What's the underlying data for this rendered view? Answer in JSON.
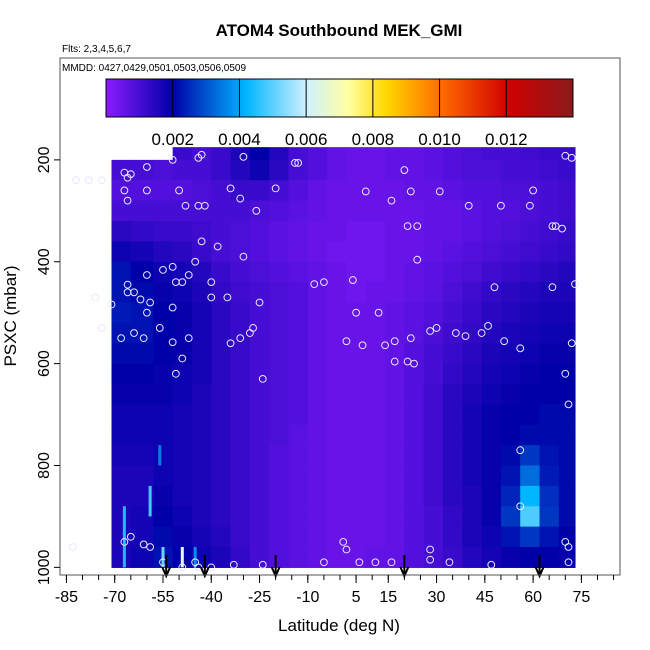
{
  "chart_data": {
    "type": "heatmap",
    "title": "ATOM4 Southbound MEK_GMI",
    "subtitle_flights": "Flts: 2,3,4,5,6,7",
    "subtitle_dates": "MMDD: 0427,0429,0501,0503,0506,0509",
    "xlabel": "Latitude (deg N)",
    "ylabel": "PSXC (mbar)",
    "xlim": [
      -87,
      87
    ],
    "ylim": [
      1015,
      0
    ],
    "x_ticks": [
      -85,
      -70,
      -55,
      -40,
      -25,
      -10,
      5,
      15,
      30,
      45,
      60,
      75
    ],
    "x_tick_labels": [
      "-85",
      "-70",
      "-55",
      "-40",
      "-25",
      "-10",
      "5",
      "15",
      "30",
      "45",
      "60",
      "75"
    ],
    "x_minor_ticks": [
      -85,
      -80,
      -75,
      -70,
      -65,
      -60,
      -55,
      -50,
      -45,
      -40,
      -35,
      -30,
      -25,
      -20,
      -15,
      -10,
      -5,
      0,
      5,
      10,
      15,
      20,
      25,
      30,
      35,
      40,
      45,
      50,
      55,
      60,
      65,
      70,
      75,
      80,
      85
    ],
    "y_ticks": [
      200,
      400,
      600,
      800,
      1000
    ],
    "y_tick_labels": [
      "200",
      "400",
      "600",
      "800",
      "1000"
    ],
    "colorbar": {
      "range": [
        0,
        0.014
      ],
      "ticks": [
        0.002,
        0.004,
        0.006,
        0.008,
        0.01,
        0.012
      ],
      "tick_labels": [
        "0.002",
        "0.004",
        "0.006",
        "0.008",
        "0.010",
        "0.012"
      ],
      "colors": [
        "#8b1bff",
        "#0000a8",
        "#00b6ff",
        "#ffffff",
        "#ffd700",
        "#ff6a00",
        "#d00000",
        "#8b1a1a"
      ]
    },
    "field": {
      "lat_edges": [
        -71,
        -65,
        -58,
        -52,
        -46,
        -40,
        -34,
        -28,
        -22,
        -16,
        -10,
        -4,
        2,
        8,
        14,
        20,
        26,
        32,
        38,
        44,
        50,
        56,
        62,
        68,
        73
      ],
      "p_edges": [
        175,
        200,
        240,
        280,
        320,
        360,
        400,
        440,
        480,
        520,
        560,
        600,
        640,
        680,
        720,
        760,
        800,
        840,
        880,
        920,
        960,
        1000
      ],
      "values": [
        [
          null,
          null,
          null,
          0.0012,
          0.001,
          0.0012,
          0.0016,
          0.002,
          0.0015,
          0.001,
          0.0008,
          0.0006,
          0.0005,
          0.0005,
          0.0006,
          0.0006,
          0.0007,
          0.0008,
          0.0009,
          0.001,
          0.001,
          0.0011,
          0.0012,
          0.0012
        ],
        [
          0.001,
          0.001,
          0.0009,
          0.001,
          0.001,
          0.0012,
          0.0015,
          0.0018,
          0.0014,
          0.001,
          0.0008,
          0.0006,
          0.0005,
          0.0005,
          0.0006,
          0.0006,
          0.0007,
          0.0008,
          0.0009,
          0.0009,
          0.001,
          0.001,
          0.0011,
          0.0012
        ],
        [
          0.0008,
          0.0008,
          0.0008,
          0.0008,
          0.0009,
          0.001,
          0.0012,
          0.0012,
          0.001,
          0.0008,
          0.0006,
          0.0005,
          0.0005,
          0.0005,
          0.0005,
          0.0006,
          0.0006,
          0.0007,
          0.0008,
          0.0008,
          0.0009,
          0.0009,
          0.001,
          0.0011
        ],
        [
          0.001,
          0.001,
          0.001,
          0.001,
          0.001,
          0.001,
          0.001,
          0.0009,
          0.0008,
          0.0007,
          0.0006,
          0.0005,
          0.0005,
          0.0005,
          0.0005,
          0.0005,
          0.0006,
          0.0006,
          0.0007,
          0.0008,
          0.0008,
          0.0009,
          0.001,
          0.0011
        ],
        [
          0.0014,
          0.0013,
          0.0012,
          0.0012,
          0.0011,
          0.001,
          0.0009,
          0.0008,
          0.0007,
          0.0006,
          0.0005,
          0.0005,
          0.0004,
          0.0004,
          0.0005,
          0.0005,
          0.0006,
          0.0006,
          0.0007,
          0.0008,
          0.0009,
          0.001,
          0.0011,
          0.0012
        ],
        [
          0.0018,
          0.0017,
          0.0015,
          0.0014,
          0.0012,
          0.001,
          0.0009,
          0.0008,
          0.0007,
          0.0006,
          0.0005,
          0.0004,
          0.0004,
          0.0004,
          0.0005,
          0.0005,
          0.0006,
          0.0007,
          0.0008,
          0.0009,
          0.001,
          0.0011,
          0.0012,
          0.0013
        ],
        [
          0.0022,
          0.002,
          0.0018,
          0.0017,
          0.0015,
          0.0012,
          0.001,
          0.0009,
          0.0008,
          0.0007,
          0.0006,
          0.0005,
          0.0004,
          0.0004,
          0.0005,
          0.0006,
          0.0007,
          0.0008,
          0.0009,
          0.0011,
          0.0012,
          0.0013,
          0.0014,
          0.0015
        ],
        [
          0.0022,
          0.0021,
          0.0019,
          0.0018,
          0.0016,
          0.0013,
          0.0011,
          0.001,
          0.0009,
          0.0008,
          0.0006,
          0.0005,
          0.0004,
          0.0005,
          0.0005,
          0.0006,
          0.0007,
          0.0009,
          0.0011,
          0.0013,
          0.0014,
          0.0015,
          0.0016,
          0.0016
        ],
        [
          0.0023,
          0.0022,
          0.002,
          0.0019,
          0.0017,
          0.0014,
          0.0012,
          0.001,
          0.0009,
          0.0008,
          0.0006,
          0.0005,
          0.0005,
          0.0005,
          0.0006,
          0.0007,
          0.0008,
          0.001,
          0.0012,
          0.0014,
          0.0015,
          0.0016,
          0.0017,
          0.0017
        ],
        [
          0.0022,
          0.0022,
          0.002,
          0.0019,
          0.0017,
          0.0014,
          0.0012,
          0.001,
          0.0009,
          0.0008,
          0.0006,
          0.0005,
          0.0005,
          0.0005,
          0.0006,
          0.0007,
          0.0009,
          0.0011,
          0.0013,
          0.0015,
          0.0016,
          0.0017,
          0.0018,
          0.0018
        ],
        [
          0.0021,
          0.0021,
          0.002,
          0.0019,
          0.0017,
          0.0014,
          0.0012,
          0.001,
          0.0009,
          0.0008,
          0.0006,
          0.0005,
          0.0005,
          0.0005,
          0.0006,
          0.0008,
          0.001,
          0.0012,
          0.0014,
          0.0016,
          0.0017,
          0.0018,
          0.0019,
          0.0019
        ],
        [
          0.002,
          0.002,
          0.0019,
          0.0018,
          0.0017,
          0.0014,
          0.0012,
          0.001,
          0.0009,
          0.0008,
          0.0006,
          0.0005,
          0.0005,
          0.0005,
          0.0006,
          0.0008,
          0.001,
          0.0013,
          0.0015,
          0.0017,
          0.0018,
          0.0019,
          0.002,
          0.002
        ],
        [
          0.0019,
          0.0019,
          0.0019,
          0.0018,
          0.0016,
          0.0014,
          0.0012,
          0.001,
          0.0009,
          0.0008,
          0.0006,
          0.0005,
          0.0005,
          0.0005,
          0.0006,
          0.0008,
          0.0011,
          0.0014,
          0.0016,
          0.0018,
          0.0019,
          0.002,
          0.002,
          0.002
        ],
        [
          0.0018,
          0.0018,
          0.0018,
          0.0017,
          0.0016,
          0.0014,
          0.0012,
          0.001,
          0.0009,
          0.0008,
          0.0006,
          0.0005,
          0.0005,
          0.0005,
          0.0006,
          0.0008,
          0.0011,
          0.0014,
          0.0017,
          0.0019,
          0.002,
          0.002,
          0.0021,
          0.0021
        ],
        [
          0.0018,
          0.0018,
          0.0018,
          0.0017,
          0.0016,
          0.0014,
          0.0012,
          0.001,
          0.0009,
          0.0007,
          0.0006,
          0.0005,
          0.0005,
          0.0005,
          0.0006,
          0.0008,
          0.0011,
          0.0014,
          0.0017,
          0.0019,
          0.002,
          0.0021,
          0.0021,
          0.0021
        ],
        [
          0.0017,
          0.0017,
          0.0018,
          0.0017,
          0.0016,
          0.0014,
          0.0012,
          0.001,
          0.0008,
          0.0007,
          0.0006,
          0.0005,
          0.0005,
          0.0005,
          0.0006,
          0.0008,
          0.0011,
          0.0014,
          0.0017,
          0.0019,
          0.0021,
          0.0026,
          0.0022,
          0.0021
        ],
        [
          0.0016,
          0.0016,
          0.0018,
          0.0017,
          0.0016,
          0.0014,
          0.0012,
          0.001,
          0.0008,
          0.0007,
          0.0006,
          0.0005,
          0.0005,
          0.0005,
          0.0006,
          0.0008,
          0.0011,
          0.0014,
          0.0017,
          0.0019,
          0.0022,
          0.0032,
          0.0023,
          0.0021
        ],
        [
          0.0016,
          0.0016,
          0.0019,
          0.0017,
          0.0016,
          0.0014,
          0.0012,
          0.001,
          0.0008,
          0.0007,
          0.0006,
          0.0005,
          0.0005,
          0.0005,
          0.0006,
          0.0008,
          0.0011,
          0.0014,
          0.0016,
          0.0019,
          0.0024,
          0.004,
          0.0025,
          0.0021
        ],
        [
          0.0016,
          0.0017,
          0.002,
          0.0018,
          0.0016,
          0.0014,
          0.0012,
          0.001,
          0.0008,
          0.0007,
          0.0006,
          0.0005,
          0.0005,
          0.0005,
          0.0006,
          0.0008,
          0.001,
          0.0013,
          0.0016,
          0.0019,
          0.0026,
          0.0046,
          0.0026,
          0.0021
        ],
        [
          0.0016,
          0.0017,
          0.0021,
          0.0019,
          0.0017,
          0.0015,
          0.0012,
          0.001,
          0.0008,
          0.0007,
          0.0006,
          0.0005,
          0.0005,
          0.0005,
          0.0006,
          0.0008,
          0.001,
          0.0013,
          0.0016,
          0.0018,
          0.0022,
          0.0026,
          0.0022,
          0.002
        ],
        [
          0.0016,
          0.0018,
          0.0022,
          0.002,
          0.0018,
          0.0016,
          0.0013,
          0.001,
          0.0008,
          0.0007,
          0.0006,
          0.0005,
          0.0005,
          0.0006,
          0.0006,
          0.0008,
          0.001,
          0.0012,
          0.0015,
          0.0017,
          0.0019,
          0.002,
          0.002,
          0.0019
        ]
      ],
      "streaks": [
        {
          "lat": -67,
          "p": [
            880,
            1000
          ],
          "value": 0.0042
        },
        {
          "lat": -59,
          "p": [
            840,
            900
          ],
          "value": 0.0045
        },
        {
          "lat": -56,
          "p": [
            760,
            800
          ],
          "value": 0.0034
        },
        {
          "lat": -55,
          "p": [
            960,
            1000
          ],
          "value": 0.0048
        },
        {
          "lat": -49,
          "p": [
            960,
            1000
          ],
          "value": 0.0058
        },
        {
          "lat": -45,
          "p": [
            960,
            1000
          ],
          "value": 0.0036
        }
      ]
    },
    "observations": [
      {
        "lat": -82,
        "p": 240
      },
      {
        "lat": -78,
        "p": 240
      },
      {
        "lat": -74,
        "p": 240
      },
      {
        "lat": -67,
        "p": 225
      },
      {
        "lat": -66,
        "p": 235
      },
      {
        "lat": -65,
        "p": 228
      },
      {
        "lat": -60,
        "p": 214
      },
      {
        "lat": -52,
        "p": 200
      },
      {
        "lat": -44,
        "p": 196
      },
      {
        "lat": -43,
        "p": 190
      },
      {
        "lat": -30,
        "p": 194
      },
      {
        "lat": -14,
        "p": 206
      },
      {
        "lat": -13,
        "p": 206
      },
      {
        "lat": 20,
        "p": 220
      },
      {
        "lat": 70,
        "p": 192
      },
      {
        "lat": 72,
        "p": 196
      },
      {
        "lat": -67,
        "p": 260
      },
      {
        "lat": -66,
        "p": 280
      },
      {
        "lat": -60,
        "p": 260
      },
      {
        "lat": -50,
        "p": 260
      },
      {
        "lat": -44,
        "p": 290
      },
      {
        "lat": -42,
        "p": 290
      },
      {
        "lat": -34,
        "p": 256
      },
      {
        "lat": -20,
        "p": 256
      },
      {
        "lat": -48,
        "p": 290
      },
      {
        "lat": -31,
        "p": 276
      },
      {
        "lat": -26,
        "p": 300
      },
      {
        "lat": 8,
        "p": 262
      },
      {
        "lat": 16,
        "p": 280
      },
      {
        "lat": 21,
        "p": 330
      },
      {
        "lat": 24,
        "p": 330
      },
      {
        "lat": 22,
        "p": 262
      },
      {
        "lat": 31,
        "p": 262
      },
      {
        "lat": 40,
        "p": 290
      },
      {
        "lat": 50,
        "p": 290
      },
      {
        "lat": 59,
        "p": 290
      },
      {
        "lat": 66,
        "p": 330
      },
      {
        "lat": 67,
        "p": 330
      },
      {
        "lat": 69,
        "p": 335
      },
      {
        "lat": 60,
        "p": 260
      },
      {
        "lat": -43,
        "p": 360
      },
      {
        "lat": -38,
        "p": 370
      },
      {
        "lat": -30,
        "p": 390
      },
      {
        "lat": -52,
        "p": 410
      },
      {
        "lat": -45,
        "p": 400
      },
      {
        "lat": -64,
        "p": 460
      },
      {
        "lat": -60,
        "p": 426
      },
      {
        "lat": -55,
        "p": 416
      },
      {
        "lat": -47,
        "p": 426
      },
      {
        "lat": -40,
        "p": 440
      },
      {
        "lat": 24,
        "p": 396
      },
      {
        "lat": -66,
        "p": 460
      },
      {
        "lat": -62,
        "p": 474
      },
      {
        "lat": -59,
        "p": 480
      },
      {
        "lat": -60,
        "p": 500
      },
      {
        "lat": -52,
        "p": 490
      },
      {
        "lat": -66,
        "p": 445
      },
      {
        "lat": -51,
        "p": 440
      },
      {
        "lat": -76,
        "p": 470
      },
      {
        "lat": -71,
        "p": 484
      },
      {
        "lat": -49,
        "p": 440
      },
      {
        "lat": -40,
        "p": 470
      },
      {
        "lat": -35,
        "p": 470
      },
      {
        "lat": -25,
        "p": 480
      },
      {
        "lat": -8,
        "p": 444
      },
      {
        "lat": -5,
        "p": 440
      },
      {
        "lat": 4,
        "p": 436
      },
      {
        "lat": 5,
        "p": 500
      },
      {
        "lat": 12,
        "p": 500
      },
      {
        "lat": 48,
        "p": 450
      },
      {
        "lat": 66,
        "p": 450
      },
      {
        "lat": 73,
        "p": 444
      },
      {
        "lat": -74,
        "p": 530
      },
      {
        "lat": -68,
        "p": 550
      },
      {
        "lat": -64,
        "p": 540
      },
      {
        "lat": -61,
        "p": 550
      },
      {
        "lat": -56,
        "p": 530
      },
      {
        "lat": -52,
        "p": 558
      },
      {
        "lat": -47,
        "p": 550
      },
      {
        "lat": -34,
        "p": 560
      },
      {
        "lat": -31,
        "p": 550
      },
      {
        "lat": -27,
        "p": 530
      },
      {
        "lat": -28,
        "p": 540
      },
      {
        "lat": 2,
        "p": 556
      },
      {
        "lat": 7,
        "p": 564
      },
      {
        "lat": 14,
        "p": 564
      },
      {
        "lat": 17,
        "p": 556
      },
      {
        "lat": 22,
        "p": 550
      },
      {
        "lat": 28,
        "p": 536
      },
      {
        "lat": 30,
        "p": 530
      },
      {
        "lat": 36,
        "p": 540
      },
      {
        "lat": 39,
        "p": 546
      },
      {
        "lat": 44,
        "p": 540
      },
      {
        "lat": 46,
        "p": 526
      },
      {
        "lat": 51,
        "p": 556
      },
      {
        "lat": 56,
        "p": 570
      },
      {
        "lat": 70,
        "p": 620
      },
      {
        "lat": 71,
        "p": 680
      },
      {
        "lat": 72,
        "p": 560
      },
      {
        "lat": -49,
        "p": 590
      },
      {
        "lat": -51,
        "p": 620
      },
      {
        "lat": -24,
        "p": 630
      },
      {
        "lat": 17,
        "p": 596
      },
      {
        "lat": 21,
        "p": 596
      },
      {
        "lat": 23,
        "p": 600
      },
      {
        "lat": 56,
        "p": 770
      },
      {
        "lat": 56,
        "p": 880
      },
      {
        "lat": -67,
        "p": 950
      },
      {
        "lat": -65,
        "p": 940
      },
      {
        "lat": -61,
        "p": 955
      },
      {
        "lat": -59,
        "p": 960
      },
      {
        "lat": -55,
        "p": 990
      },
      {
        "lat": -45,
        "p": 990
      },
      {
        "lat": -40,
        "p": 1000
      },
      {
        "lat": -33,
        "p": 995
      },
      {
        "lat": -24,
        "p": 995
      },
      {
        "lat": -5,
        "p": 990
      },
      {
        "lat": 1,
        "p": 950
      },
      {
        "lat": 2,
        "p": 965
      },
      {
        "lat": 6,
        "p": 990
      },
      {
        "lat": 11,
        "p": 990
      },
      {
        "lat": 16,
        "p": 990
      },
      {
        "lat": 28,
        "p": 965
      },
      {
        "lat": 28,
        "p": 985
      },
      {
        "lat": 34,
        "p": 990
      },
      {
        "lat": 47,
        "p": 995
      },
      {
        "lat": 70,
        "p": 950
      },
      {
        "lat": 71,
        "p": 960
      },
      {
        "lat": 71,
        "p": 990
      },
      {
        "lat": -49,
        "p": 1000
      },
      {
        "lat": -44,
        "p": 1000
      },
      {
        "lat": -83,
        "p": 960
      }
    ],
    "arrows": [
      -54,
      -42,
      -20,
      20,
      62
    ]
  }
}
